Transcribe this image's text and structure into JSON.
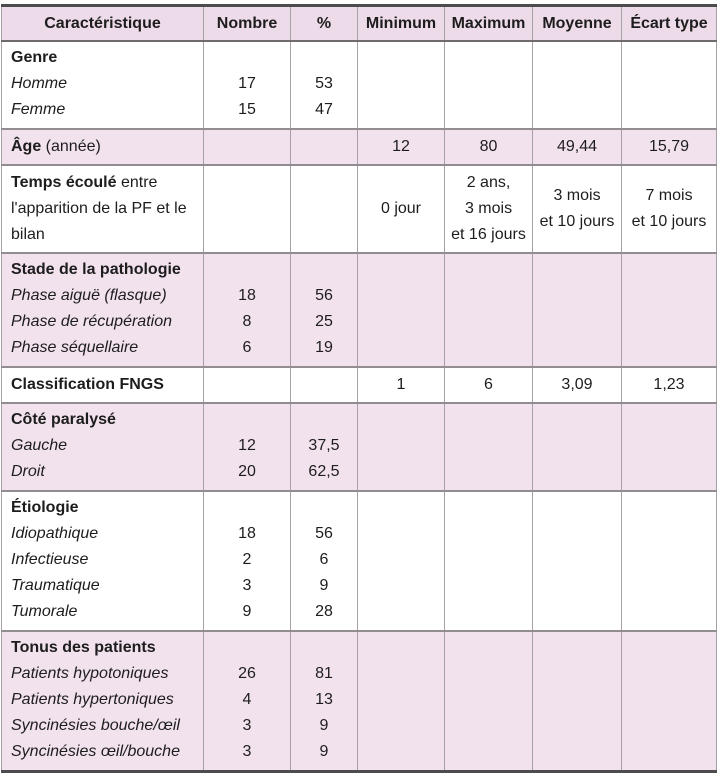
{
  "table": {
    "columns": [
      "Caractéristique",
      "Nombre",
      "%",
      "Minimum",
      "Maximum",
      "Moyenne",
      "Écart type"
    ],
    "sections": [
      {
        "title": "Genre",
        "items": [
          {
            "label": "Homme",
            "n": "17",
            "p": "53"
          },
          {
            "label": "Femme",
            "n": "15",
            "p": "47"
          }
        ]
      },
      {
        "title_bold": "Âge",
        "title_rest": " (année)",
        "min": "12",
        "max": "80",
        "mean": "49,44",
        "sd": "15,79"
      },
      {
        "title_bold": "Temps écoulé",
        "title_rest": " entre l'apparition de la PF et le bilan",
        "min": "0 jour",
        "max": "2 ans,\n3 mois\net 16 jours",
        "mean": "3 mois\net 10 jours",
        "sd": "7 mois\net 10 jours"
      },
      {
        "title": "Stade de la pathologie",
        "items": [
          {
            "label": "Phase aiguë (flasque)",
            "n": "18",
            "p": "56"
          },
          {
            "label": "Phase de récupération",
            "n": "8",
            "p": "25"
          },
          {
            "label": "Phase séquellaire",
            "n": "6",
            "p": "19"
          }
        ]
      },
      {
        "title_bold": "Classification FNGS",
        "title_rest": "",
        "min": "1",
        "max": "6",
        "mean": "3,09",
        "sd": "1,23"
      },
      {
        "title": "Côté paralysé",
        "items": [
          {
            "label": "Gauche",
            "n": "12",
            "p": "37,5"
          },
          {
            "label": "Droit",
            "n": "20",
            "p": "62,5"
          }
        ]
      },
      {
        "title": "Étiologie",
        "items": [
          {
            "label": "Idiopathique",
            "n": "18",
            "p": "56"
          },
          {
            "label": "Infectieuse",
            "n": "2",
            "p": "6"
          },
          {
            "label": "Traumatique",
            "n": "3",
            "p": "9"
          },
          {
            "label": "Tumorale",
            "n": "9",
            "p": "28"
          }
        ]
      },
      {
        "title": "Tonus des patients",
        "items": [
          {
            "label": "Patients hypotoniques",
            "n": "26",
            "p": "81"
          },
          {
            "label": "Patients hypertoniques",
            "n": "4",
            "p": "13"
          },
          {
            "label": "Syncinésies bouche/œil",
            "n": "3",
            "p": "9"
          },
          {
            "label": "Syncinésies œil/bouche",
            "n": "3",
            "p": "9"
          }
        ]
      }
    ],
    "colors": {
      "header_bg": "#eedbea",
      "shaded_row_bg": "#f2e2ee",
      "outer_border": "#4c4c4c",
      "grid_line": "#a6a1a6",
      "text": "#1d1d1d"
    }
  }
}
